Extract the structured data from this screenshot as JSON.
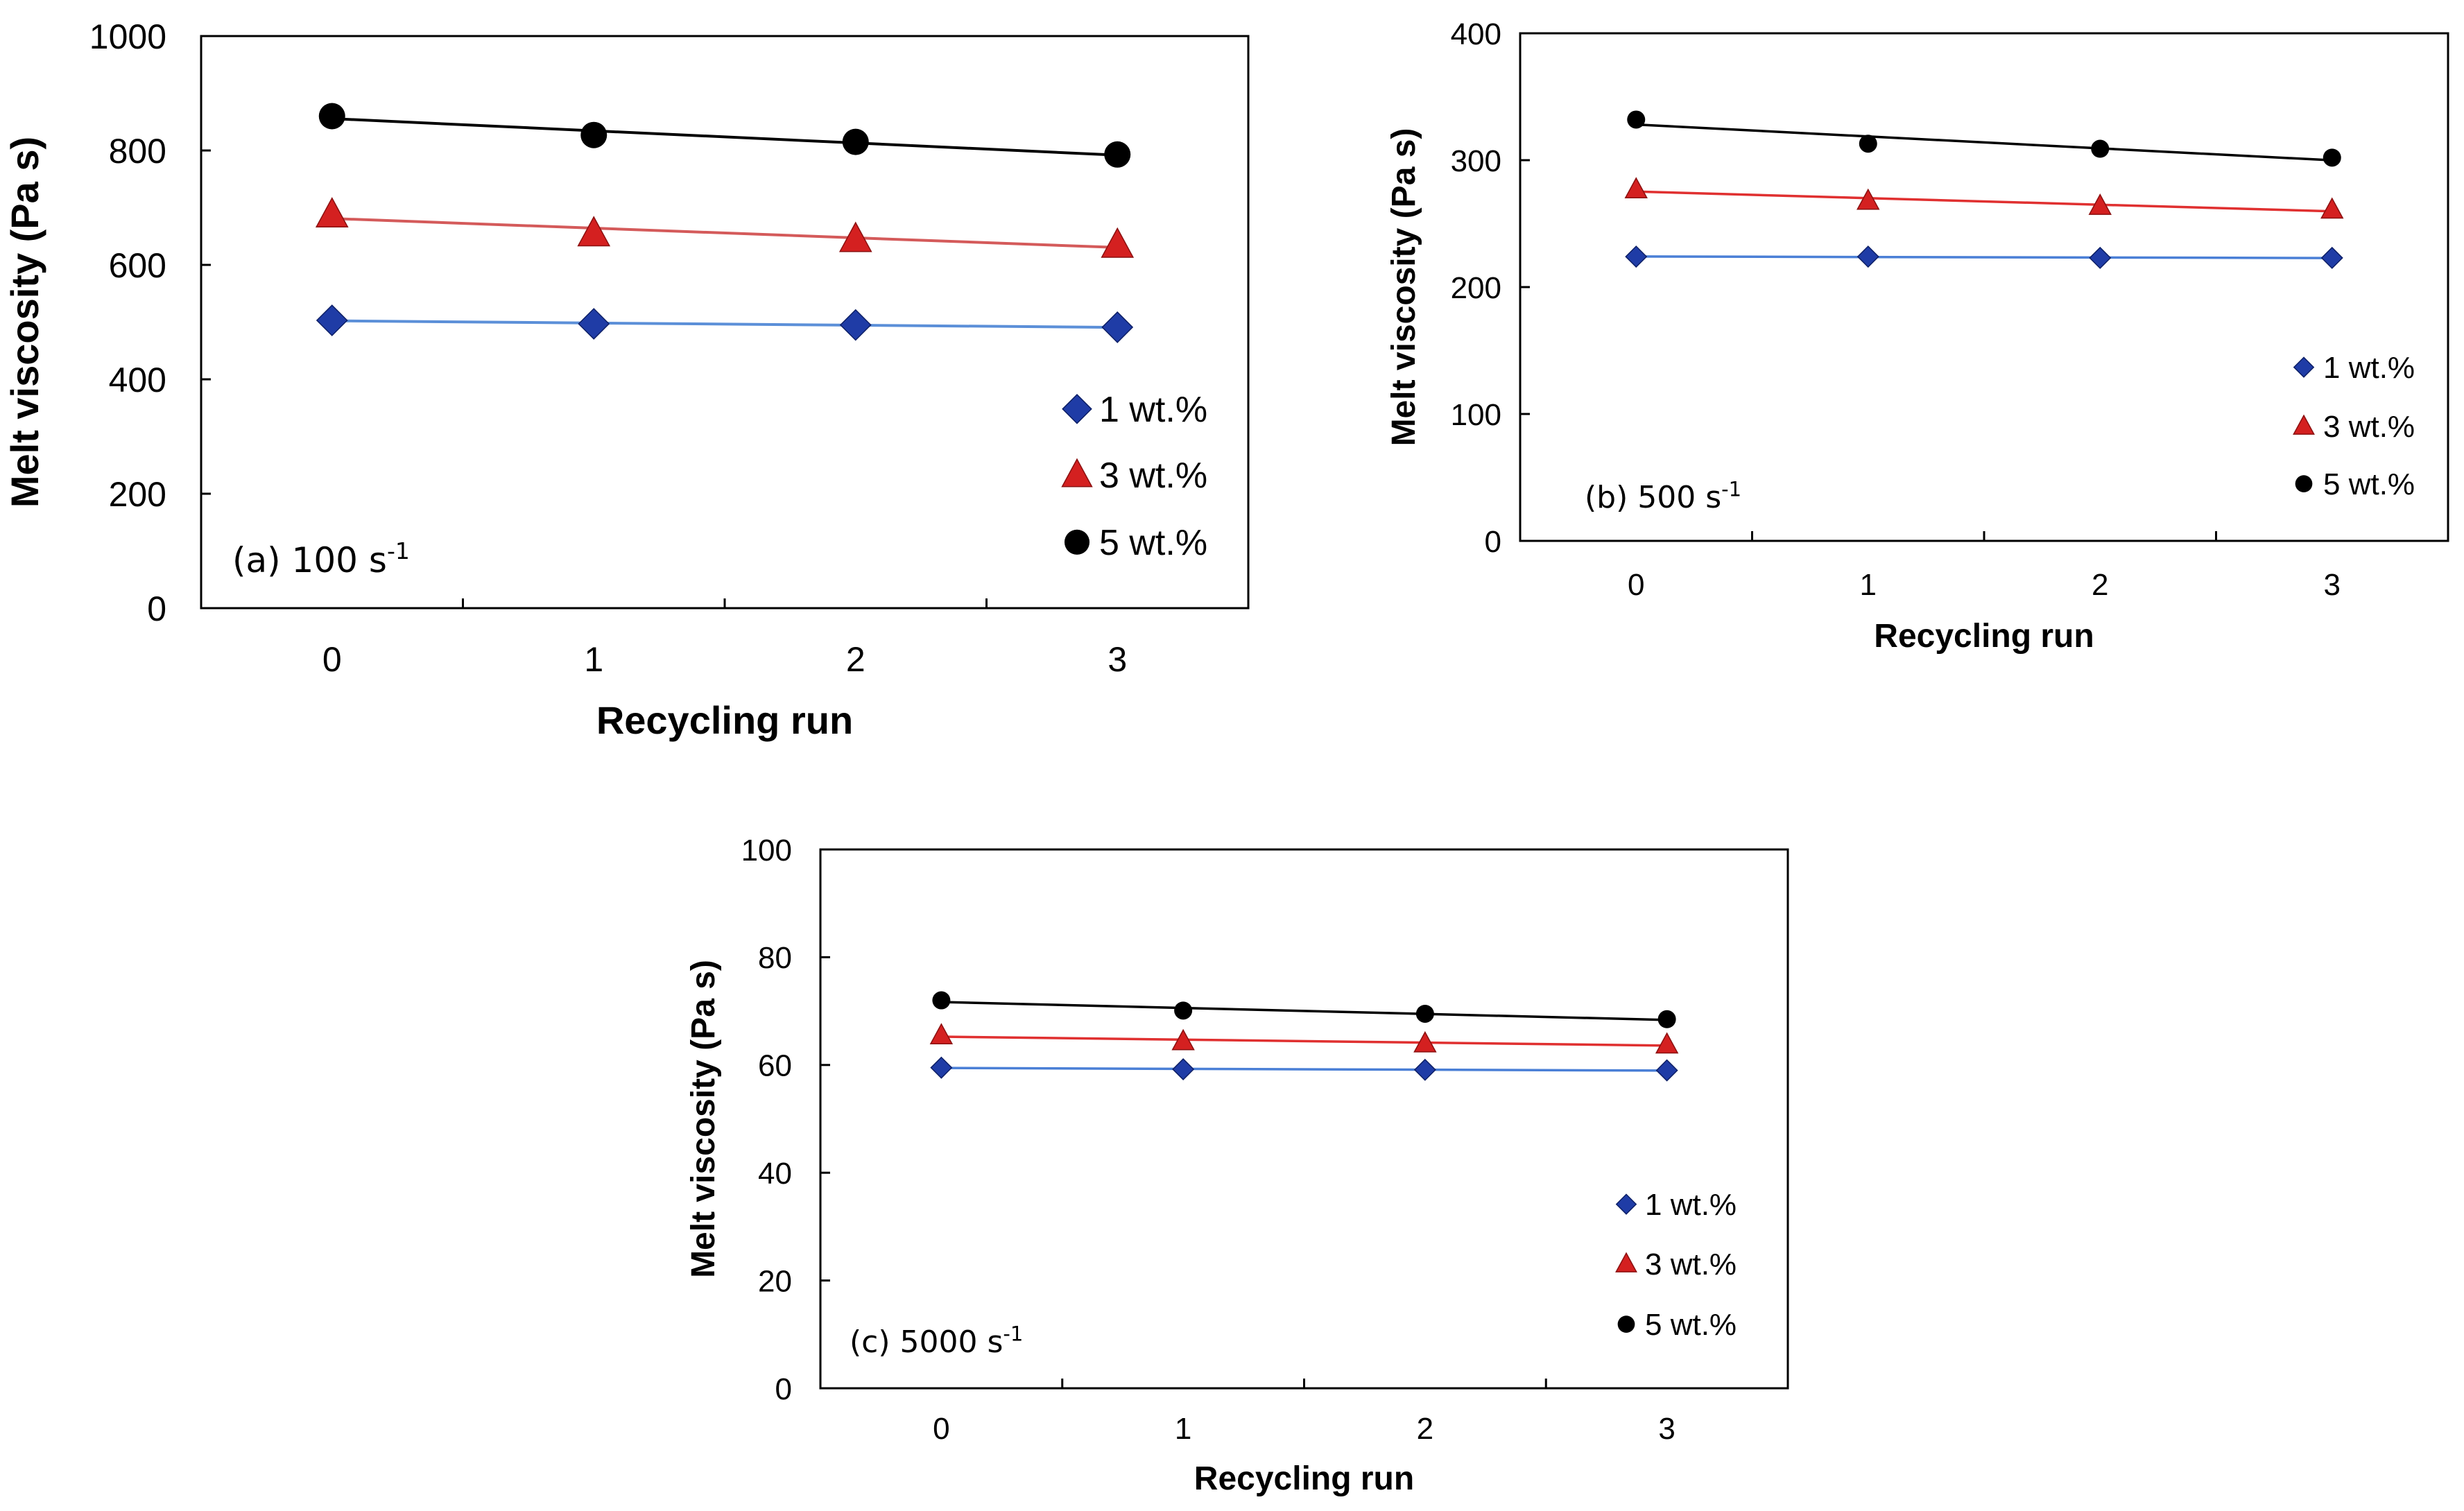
{
  "chart_data": [
    {
      "type": "scatter",
      "panel_label": "(a) 100 s",
      "panel_label_sup": "-1",
      "xlabel": "Recycling run",
      "ylabel": "Melt viscosity (Pa s)",
      "x": [
        0,
        1,
        2,
        3
      ],
      "xticks": [
        "0",
        "1",
        "2",
        "3"
      ],
      "xlim": [
        -0.5,
        3.5
      ],
      "ylim": [
        0,
        1000
      ],
      "yticks": [
        "0",
        "200",
        "400",
        "600",
        "800",
        "1000"
      ],
      "grid": false,
      "legend_position": "bottom-right",
      "trendlines": true,
      "series": [
        {
          "name": "1 wt.%",
          "values": [
            503,
            497,
            495,
            491
          ],
          "color": "#1f3ca6",
          "line_color": "#5b8fd8",
          "marker": "diamond"
        },
        {
          "name": "3 wt.%",
          "values": [
            688,
            655,
            645,
            635
          ],
          "color": "#d42020",
          "line_color": "#d45a5a",
          "marker": "triangle"
        },
        {
          "name": "5 wt.%",
          "values": [
            860,
            827,
            815,
            793
          ],
          "color": "#000000",
          "line_color": "#000000",
          "marker": "circle"
        }
      ]
    },
    {
      "type": "scatter",
      "panel_label": "(b) 500 s",
      "panel_label_sup": "-1",
      "xlabel": "Recycling run",
      "ylabel": "Melt viscosity (Pa s)",
      "x": [
        0,
        1,
        2,
        3
      ],
      "xticks": [
        "0",
        "1",
        "2",
        "3"
      ],
      "xlim": [
        -0.5,
        3.5
      ],
      "ylim": [
        0,
        400
      ],
      "yticks": [
        "0",
        "100",
        "200",
        "300",
        "400"
      ],
      "grid": false,
      "legend_position": "bottom-right",
      "trendlines": true,
      "series": [
        {
          "name": "1 wt.%",
          "values": [
            224,
            224,
            223,
            223
          ],
          "color": "#1f3ca6",
          "line_color": "#4a7fd6",
          "marker": "diamond"
        },
        {
          "name": "3 wt.%",
          "values": [
            277,
            268,
            264,
            261
          ],
          "color": "#d42020",
          "line_color": "#e03030",
          "marker": "triangle"
        },
        {
          "name": "5 wt.%",
          "values": [
            332,
            313,
            309,
            302
          ],
          "color": "#000000",
          "line_color": "#000000",
          "marker": "circle"
        }
      ]
    },
    {
      "type": "scatter",
      "panel_label": "(c) 5000 s",
      "panel_label_sup": "-1",
      "xlabel": "Recycling run",
      "ylabel": "Melt viscosity (Pa s)",
      "x": [
        0,
        1,
        2,
        3
      ],
      "xticks": [
        "0",
        "1",
        "2",
        "3"
      ],
      "xlim": [
        -0.5,
        3.5
      ],
      "ylim": [
        0,
        100
      ],
      "yticks": [
        "0",
        "20",
        "40",
        "60",
        "80",
        "100"
      ],
      "grid": false,
      "legend_position": "bottom-right",
      "trendlines": true,
      "series": [
        {
          "name": "1 wt.%",
          "values": [
            59.5,
            59.2,
            59.1,
            59.0
          ],
          "color": "#1f3ca6",
          "line_color": "#4a7fd6",
          "marker": "diamond"
        },
        {
          "name": "3 wt.%",
          "values": [
            65.5,
            64.4,
            64.0,
            63.8
          ],
          "color": "#d42020",
          "line_color": "#e03030",
          "marker": "triangle"
        },
        {
          "name": "5 wt.%",
          "values": [
            72.0,
            70.1,
            69.5,
            68.5
          ],
          "color": "#000000",
          "line_color": "#000000",
          "marker": "circle"
        }
      ]
    }
  ]
}
